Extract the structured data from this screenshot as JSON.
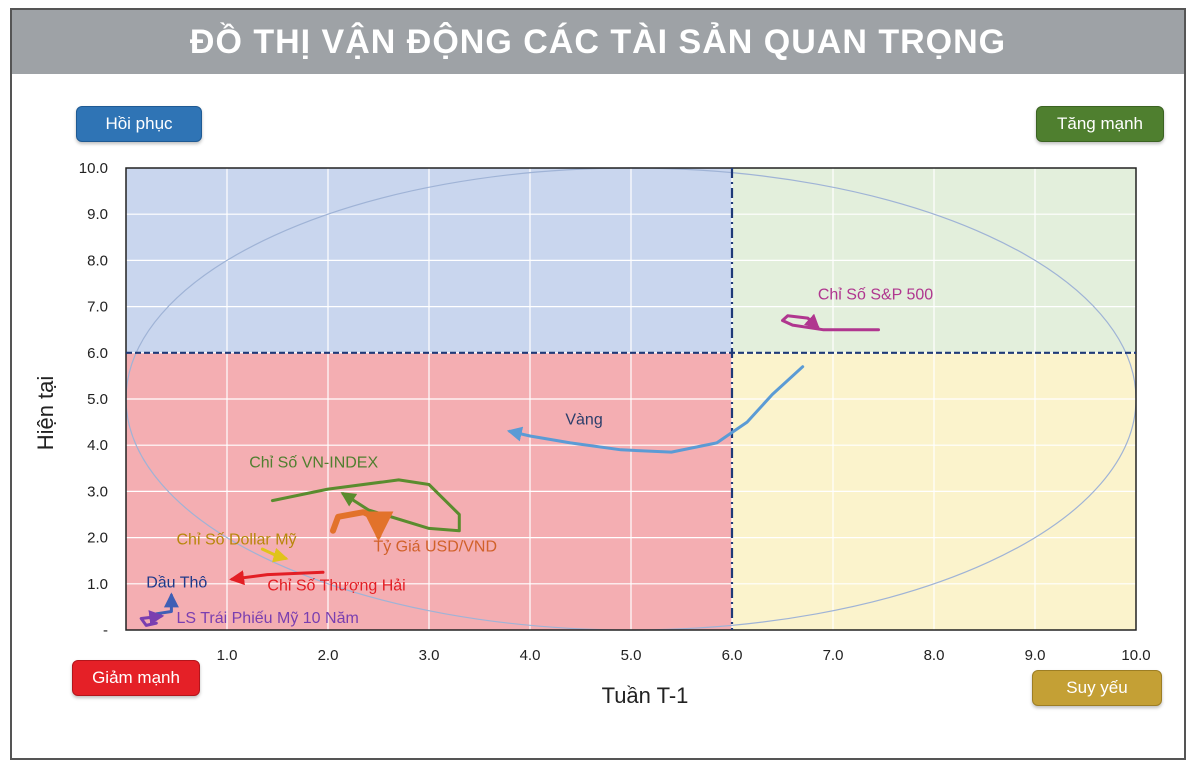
{
  "title": "ĐỒ THỊ VẬN ĐỘNG CÁC TÀI SẢN QUAN TRỌNG",
  "quadrants": {
    "top_left": {
      "label": "Hồi phục",
      "color": "#2f74b5"
    },
    "top_right": {
      "label": "Tăng mạnh",
      "color": "#4f7f2f"
    },
    "bottom_left": {
      "label": "Giảm mạnh",
      "color": "#e52027"
    },
    "bottom_right": {
      "label": "Suy yếu",
      "color": "#c4a035"
    }
  },
  "chart_data": {
    "type": "line",
    "xlabel": "Tuần T-1",
    "ylabel": "Hiện tại",
    "xlim": [
      0,
      10
    ],
    "ylim": [
      0,
      10
    ],
    "x_ticks": [
      "1.0",
      "2.0",
      "3.0",
      "4.0",
      "5.0",
      "6.0",
      "7.0",
      "8.0",
      "9.0",
      "10.0"
    ],
    "y_ticks": [
      "-",
      "1.0",
      "2.0",
      "3.0",
      "4.0",
      "5.0",
      "6.0",
      "7.0",
      "8.0",
      "9.0",
      "10.0"
    ],
    "threshold_x": 6.0,
    "threshold_y": 6.0,
    "grid": true,
    "region_colors": {
      "top_left": "#c9d6ee",
      "top_right": "#e3efdc",
      "bottom_left": "#f4aeb2",
      "bottom_right": "#fbf3cc"
    },
    "series": [
      {
        "name": "Chỉ Số S&P 500",
        "color": "#b0368f",
        "points": [
          [
            7.45,
            6.5
          ],
          [
            6.9,
            6.5
          ],
          [
            6.6,
            6.6
          ],
          [
            6.5,
            6.7
          ],
          [
            6.55,
            6.8
          ],
          [
            6.75,
            6.75
          ],
          [
            6.85,
            6.55
          ]
        ]
      },
      {
        "name": "Vàng",
        "color": "#5b9bd5",
        "points": [
          [
            6.7,
            5.7
          ],
          [
            6.4,
            5.1
          ],
          [
            6.15,
            4.5
          ],
          [
            5.85,
            4.05
          ],
          [
            5.4,
            3.85
          ],
          [
            4.9,
            3.9
          ],
          [
            4.4,
            4.05
          ],
          [
            4.0,
            4.2
          ],
          [
            3.8,
            4.3
          ]
        ]
      },
      {
        "name": "Chỉ Số VN-INDEX",
        "color": "#5a8c2e",
        "points": [
          [
            1.45,
            2.8
          ],
          [
            2.0,
            3.05
          ],
          [
            2.7,
            3.25
          ],
          [
            3.0,
            3.15
          ],
          [
            3.3,
            2.5
          ],
          [
            3.3,
            2.15
          ],
          [
            3.0,
            2.2
          ],
          [
            2.4,
            2.6
          ],
          [
            2.15,
            2.95
          ]
        ]
      },
      {
        "name": "Tỷ Giá USD/VND",
        "color": "#e2722b",
        "points": [
          [
            2.05,
            2.15
          ],
          [
            2.1,
            2.45
          ],
          [
            2.35,
            2.55
          ],
          [
            2.5,
            2.4
          ],
          [
            2.5,
            2.05
          ]
        ]
      },
      {
        "name": "Chỉ Số Dollar Mỹ",
        "color": "#e0c31a",
        "points": [
          [
            1.35,
            1.75
          ],
          [
            1.5,
            1.6
          ],
          [
            1.58,
            1.55
          ]
        ]
      },
      {
        "name": "Chỉ Số Thượng Hải",
        "color": "#e31e24",
        "points": [
          [
            1.95,
            1.25
          ],
          [
            1.4,
            1.2
          ],
          [
            1.05,
            1.1
          ]
        ]
      },
      {
        "name": "Dầu Thô",
        "color": "#3f5fb5",
        "points": [
          [
            0.3,
            0.35
          ],
          [
            0.45,
            0.4
          ],
          [
            0.45,
            0.6
          ],
          [
            0.45,
            0.75
          ]
        ]
      },
      {
        "name": "LS Trái Phiếu Mỹ 10 Năm",
        "color": "#7a3fb0",
        "points": [
          [
            0.3,
            0.15
          ],
          [
            0.2,
            0.1
          ],
          [
            0.15,
            0.25
          ],
          [
            0.35,
            0.3
          ]
        ]
      }
    ],
    "labels": [
      {
        "text": "Chỉ Số S&P 500",
        "color": "#b0368f",
        "x": 6.85,
        "y": 7.15
      },
      {
        "text": "Vàng",
        "color": "#2b3e6b",
        "x": 4.35,
        "y": 4.45
      },
      {
        "text": "Chỉ Số VN-INDEX",
        "color": "#4f7f2f",
        "x": 1.22,
        "y": 3.52
      },
      {
        "text": "Tỷ Giá USD/VND",
        "color": "#d1612a",
        "x": 2.45,
        "y": 1.7
      },
      {
        "text": "Chỉ Số Dollar Mỹ",
        "color": "#b8860b",
        "x": 0.5,
        "y": 1.85
      },
      {
        "text": "Chỉ Số Thượng Hải",
        "color": "#e31e24",
        "x": 1.4,
        "y": 0.85
      },
      {
        "text": "Dầu Thô",
        "color": "#1f3a8a",
        "x": 0.2,
        "y": 0.92
      },
      {
        "text": "LS Trái Phiếu Mỹ 10 Năm",
        "color": "#7a3fb0",
        "x": 0.5,
        "y": 0.15
      }
    ]
  }
}
